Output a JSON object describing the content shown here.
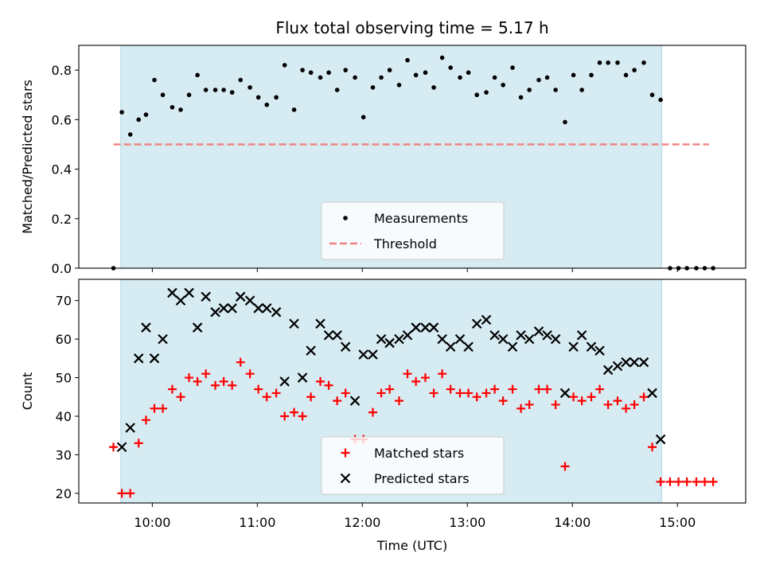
{
  "chart_data": {
    "type": "scatter",
    "title": "Flux total observing time = 5.17 h",
    "xlabel": "Time (UTC)",
    "x_unit": "hour",
    "xlim": [
      9.3,
      15.65
    ],
    "xticks": [
      10,
      11,
      12,
      13,
      14,
      15
    ],
    "xtick_labels": [
      "10:00",
      "11:00",
      "12:00",
      "13:00",
      "14:00",
      "15:00"
    ],
    "observing_window": [
      9.7,
      14.85
    ],
    "panels": [
      {
        "ylabel": "Matched/Predicted stars",
        "ylim": [
          0,
          0.9
        ],
        "yticks": [
          0.0,
          0.2,
          0.4,
          0.6,
          0.8
        ],
        "ytick_labels": [
          "0.0",
          "0.2",
          "0.4",
          "0.6",
          "0.8"
        ],
        "threshold": {
          "name": "Threshold",
          "y": 0.5,
          "x_range": [
            9.63,
            15.3
          ],
          "color": "#f08080"
        },
        "legend": {
          "position": "lower-center",
          "entries": [
            "Measurements",
            "Threshold"
          ]
        },
        "series": [
          {
            "name": "Measurements",
            "marker": "dot",
            "color": "#000000",
            "x": [
              9.63,
              9.71,
              9.79,
              9.87,
              9.94,
              10.02,
              10.1,
              10.19,
              10.27,
              10.35,
              10.43,
              10.51,
              10.6,
              10.68,
              10.76,
              10.84,
              10.93,
              11.01,
              11.09,
              11.18,
              11.26,
              11.35,
              11.43,
              11.51,
              11.6,
              11.68,
              11.76,
              11.84,
              11.93,
              12.01,
              12.1,
              12.18,
              12.26,
              12.35,
              12.43,
              12.51,
              12.6,
              12.68,
              12.76,
              12.84,
              12.93,
              13.01,
              13.09,
              13.18,
              13.26,
              13.34,
              13.43,
              13.51,
              13.59,
              13.68,
              13.76,
              13.84,
              13.93,
              14.01,
              14.09,
              14.18,
              14.26,
              14.34,
              14.43,
              14.51,
              14.59,
              14.68,
              14.76,
              14.84,
              14.93,
              15.01,
              15.09,
              15.18,
              15.26,
              15.34
            ],
            "y": [
              0.0,
              0.63,
              0.54,
              0.6,
              0.62,
              0.76,
              0.7,
              0.65,
              0.64,
              0.7,
              0.78,
              0.72,
              0.72,
              0.72,
              0.71,
              0.76,
              0.73,
              0.69,
              0.66,
              0.69,
              0.82,
              0.64,
              0.8,
              0.79,
              0.77,
              0.79,
              0.72,
              0.8,
              0.77,
              0.61,
              0.73,
              0.77,
              0.8,
              0.74,
              0.84,
              0.78,
              0.79,
              0.73,
              0.85,
              0.81,
              0.77,
              0.79,
              0.7,
              0.71,
              0.77,
              0.74,
              0.81,
              0.69,
              0.72,
              0.76,
              0.77,
              0.72,
              0.59,
              0.78,
              0.72,
              0.78,
              0.83,
              0.83,
              0.83,
              0.78,
              0.8,
              0.83,
              0.7,
              0.68,
              0.0,
              0.0,
              0.0,
              0.0,
              0.0,
              0.0
            ]
          }
        ]
      },
      {
        "ylabel": "Count",
        "ylim": [
          17.5,
          75.5
        ],
        "yticks": [
          20,
          30,
          40,
          50,
          60,
          70
        ],
        "ytick_labels": [
          "20",
          "30",
          "40",
          "50",
          "60",
          "70"
        ],
        "legend": {
          "position": "lower-center",
          "entries": [
            "Matched stars",
            "Predicted stars"
          ]
        },
        "series": [
          {
            "name": "Matched stars",
            "marker": "plus",
            "color": "#ff0000",
            "x": [
              9.63,
              9.71,
              9.79,
              9.87,
              9.94,
              10.02,
              10.1,
              10.19,
              10.27,
              10.35,
              10.43,
              10.51,
              10.6,
              10.68,
              10.76,
              10.84,
              10.93,
              11.01,
              11.09,
              11.18,
              11.26,
              11.35,
              11.43,
              11.51,
              11.6,
              11.68,
              11.76,
              11.84,
              11.93,
              12.01,
              12.1,
              12.18,
              12.26,
              12.35,
              12.43,
              12.51,
              12.6,
              12.68,
              12.76,
              12.84,
              12.93,
              13.01,
              13.09,
              13.18,
              13.26,
              13.34,
              13.43,
              13.51,
              13.59,
              13.68,
              13.76,
              13.84,
              13.93,
              14.01,
              14.09,
              14.18,
              14.26,
              14.34,
              14.43,
              14.51,
              14.59,
              14.68,
              14.76,
              14.84,
              14.93,
              15.01,
              15.09,
              15.18,
              15.26,
              15.34
            ],
            "y": [
              32,
              20,
              20,
              33,
              39,
              42,
              42,
              47,
              45,
              50,
              49,
              51,
              48,
              49,
              48,
              54,
              51,
              47,
              45,
              46,
              40,
              41,
              40,
              45,
              49,
              48,
              44,
              46,
              34,
              34,
              41,
              46,
              47,
              44,
              51,
              49,
              50,
              46,
              51,
              47,
              46,
              46,
              45,
              46,
              47,
              44,
              47,
              42,
              43,
              47,
              47,
              43,
              27,
              45,
              44,
              45,
              47,
              43,
              44,
              42,
              43,
              45,
              32,
              23,
              23,
              23,
              23,
              23,
              23,
              23
            ]
          },
          {
            "name": "Predicted stars",
            "marker": "x",
            "color": "#000000",
            "x": [
              9.71,
              9.79,
              9.87,
              9.94,
              10.02,
              10.1,
              10.19,
              10.27,
              10.35,
              10.43,
              10.51,
              10.6,
              10.68,
              10.76,
              10.84,
              10.93,
              11.01,
              11.09,
              11.18,
              11.26,
              11.35,
              11.43,
              11.51,
              11.6,
              11.68,
              11.76,
              11.84,
              11.93,
              12.01,
              12.1,
              12.18,
              12.26,
              12.35,
              12.43,
              12.51,
              12.6,
              12.68,
              12.76,
              12.84,
              12.93,
              13.01,
              13.09,
              13.18,
              13.26,
              13.34,
              13.43,
              13.51,
              13.59,
              13.68,
              13.76,
              13.84,
              13.93,
              14.01,
              14.09,
              14.18,
              14.26,
              14.34,
              14.43,
              14.51,
              14.59,
              14.68,
              14.76,
              14.84
            ],
            "y": [
              32,
              37,
              55,
              63,
              55,
              60,
              72,
              70,
              72,
              63,
              71,
              67,
              68,
              68,
              71,
              70,
              68,
              68,
              67,
              49,
              64,
              50,
              57,
              64,
              61,
              61,
              58,
              44,
              56,
              56,
              60,
              59,
              60,
              61,
              63,
              63,
              63,
              60,
              58,
              60,
              58,
              64,
              65,
              61,
              60,
              58,
              61,
              60,
              62,
              61,
              60,
              46,
              58,
              61,
              58,
              57,
              52,
              53,
              54,
              54,
              54,
              46,
              34
            ]
          }
        ]
      }
    ]
  }
}
